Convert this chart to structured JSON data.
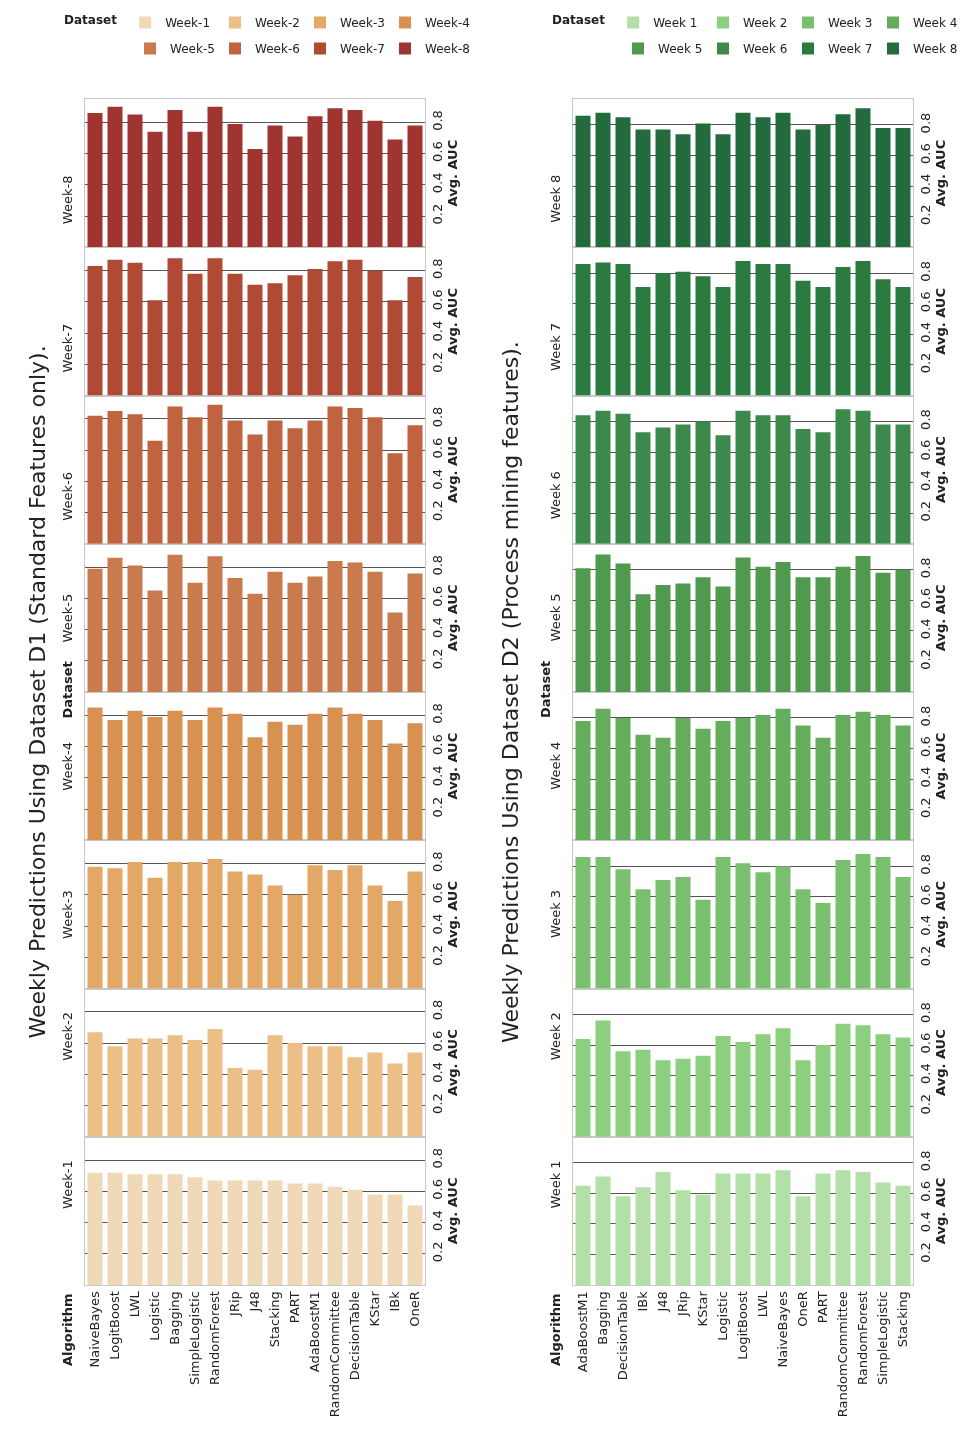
{
  "chart_data": [
    {
      "type": "bar",
      "title": "Weekly Predictions Using Dataset D1 (Standard Features only).",
      "ylabel": "Avg. AUC",
      "legend_title": "Dataset",
      "annotations": [
        "Algorithm",
        "Dataset"
      ],
      "legend": "top left",
      "grid": "y",
      "categories": [
        "NaiveBayes",
        "LogitBoost",
        "LWL",
        "Logistic",
        "Bagging",
        "SimpleLogistic",
        "RandomForest",
        "JRip",
        "J48",
        "Stacking",
        "PART",
        "AdaBoostM1",
        "RandomCommittee",
        "DecisionTable",
        "KStar",
        "IBk",
        "OneR"
      ],
      "ylim": [
        0,
        0.95
      ],
      "yticks": [
        0.2,
        0.4,
        0.6,
        0.8
      ],
      "series": [
        {
          "name": "Week-1",
          "color": "#efd9b7",
          "values": [
            0.72,
            0.72,
            0.71,
            0.71,
            0.71,
            0.69,
            0.67,
            0.67,
            0.67,
            0.67,
            0.65,
            0.65,
            0.63,
            0.61,
            0.58,
            0.58,
            0.51
          ]
        }
      ]
    },
    {
      "type": "bar",
      "ylabel": "Avg. AUC",
      "legend": "top left",
      "grid": "y",
      "tick_labels": "y",
      "categories": [
        "NaiveBayes",
        "LogitBoost",
        "LWL",
        "Logistic",
        "Bagging",
        "SimpleLogistic",
        "RandomForest",
        "JRip",
        "J48",
        "Stacking",
        "PART",
        "AdaBoostM1",
        "RandomCommittee",
        "DecisionTable",
        "KStar",
        "IBk",
        "OneR"
      ],
      "ylim": [
        0,
        0.95
      ],
      "yticks": [
        0.2,
        0.4,
        0.6,
        0.8
      ],
      "series": [
        {
          "name": "Week-2",
          "color": "#ebbf85",
          "values": [
            0.67,
            0.58,
            0.63,
            0.63,
            0.65,
            0.62,
            0.69,
            0.44,
            0.43,
            0.65,
            0.6,
            0.58,
            0.58,
            0.51,
            0.54,
            0.47,
            0.54
          ]
        }
      ]
    },
    {
      "type": "bar",
      "ylabel": "Avg. AUC",
      "legend": "top right",
      "grid": "y",
      "tick_labels": "y",
      "categories": [
        "NaiveBayes",
        "LogitBoost",
        "LWL",
        "Logistic",
        "Bagging",
        "SimpleLogistic",
        "RandomForest",
        "JRip",
        "J48",
        "Stacking",
        "PART",
        "AdaBoostM1",
        "RandomCommittee",
        "DecisionTable",
        "KStar",
        "IBk",
        "OneR"
      ],
      "ylim": [
        0,
        0.95
      ],
      "yticks": [
        0.2,
        0.4,
        0.6,
        0.8
      ],
      "series": [
        {
          "name": "Week-3",
          "color": "#e3a866",
          "values": [
            0.78,
            0.77,
            0.81,
            0.71,
            0.81,
            0.81,
            0.83,
            0.75,
            0.73,
            0.66,
            0.6,
            0.79,
            0.76,
            0.79,
            0.66,
            0.56,
            0.75
          ]
        }
      ]
    },
    {
      "type": "bar",
      "ylabel": "Avg. AUC",
      "legend": "top right",
      "grid": "y",
      "tick_labels": "y",
      "categories": [
        "NaiveBayes",
        "LogitBoost",
        "LWL",
        "Logistic",
        "Bagging",
        "SimpleLogistic",
        "RandomForest",
        "JRip",
        "J48",
        "Stacking",
        "PART",
        "AdaBoostM1",
        "RandomCommittee",
        "DecisionTable",
        "KStar",
        "IBk",
        "OneR"
      ],
      "ylim": [
        0,
        0.95
      ],
      "yticks": [
        0.2,
        0.4,
        0.6,
        0.8
      ],
      "series": [
        {
          "name": "Week-4",
          "color": "#d99152",
          "values": [
            0.85,
            0.77,
            0.83,
            0.79,
            0.83,
            0.77,
            0.85,
            0.81,
            0.66,
            0.76,
            0.74,
            0.81,
            0.85,
            0.81,
            0.77,
            0.62,
            0.75
          ]
        }
      ]
    },
    {
      "type": "bar",
      "ylabel": "Avg. AUC",
      "legend": "top left",
      "grid": "y",
      "tick_labels": "y",
      "categories": [
        "NaiveBayes",
        "LogitBoost",
        "LWL",
        "Logistic",
        "Bagging",
        "SimpleLogistic",
        "RandomForest",
        "JRip",
        "J48",
        "Stacking",
        "PART",
        "AdaBoostM1",
        "RandomCommittee",
        "DecisionTable",
        "KStar",
        "IBk",
        "OneR"
      ],
      "ylim": [
        0,
        0.95
      ],
      "yticks": [
        0.2,
        0.4,
        0.6,
        0.8
      ],
      "series": [
        {
          "name": "Week-5",
          "color": "#c97b4d",
          "values": [
            0.79,
            0.86,
            0.81,
            0.65,
            0.88,
            0.7,
            0.87,
            0.73,
            0.63,
            0.77,
            0.7,
            0.74,
            0.84,
            0.83,
            0.77,
            0.51,
            0.76
          ]
        }
      ]
    },
    {
      "type": "bar",
      "ylabel": "Avg. AUC",
      "legend": "top left",
      "grid": "y",
      "tick_labels": "y",
      "categories": [
        "NaiveBayes",
        "LogitBoost",
        "LWL",
        "Logistic",
        "Bagging",
        "SimpleLogistic",
        "RandomForest",
        "JRip",
        "J48",
        "Stacking",
        "PART",
        "AdaBoostM1",
        "RandomCommittee",
        "DecisionTable",
        "KStar",
        "IBk",
        "OneR"
      ],
      "ylim": [
        0,
        0.95
      ],
      "yticks": [
        0.2,
        0.4,
        0.6,
        0.8
      ],
      "series": [
        {
          "name": "Week-6",
          "color": "#c0643f",
          "values": [
            0.82,
            0.85,
            0.83,
            0.66,
            0.88,
            0.81,
            0.89,
            0.79,
            0.7,
            0.79,
            0.74,
            0.79,
            0.88,
            0.87,
            0.81,
            0.58,
            0.76
          ]
        }
      ]
    },
    {
      "type": "bar",
      "ylabel": "Avg. AUC",
      "legend": "top right",
      "grid": "y",
      "tick_labels": "y",
      "categories": [
        "NaiveBayes",
        "LogitBoost",
        "LWL",
        "Logistic",
        "Bagging",
        "SimpleLogistic",
        "RandomForest",
        "JRip",
        "J48",
        "Stacking",
        "PART",
        "AdaBoostM1",
        "RandomCommittee",
        "DecisionTable",
        "KStar",
        "IBk",
        "OneR"
      ],
      "ylim": [
        0,
        0.95
      ],
      "yticks": [
        0.2,
        0.4,
        0.6,
        0.8
      ],
      "series": [
        {
          "name": "Week-7",
          "color": "#b04a34",
          "values": [
            0.83,
            0.87,
            0.85,
            0.61,
            0.88,
            0.78,
            0.88,
            0.78,
            0.71,
            0.72,
            0.77,
            0.81,
            0.86,
            0.87,
            0.8,
            0.61,
            0.76
          ]
        }
      ]
    },
    {
      "type": "bar",
      "ylabel": "Avg. AUC",
      "legend": "top right",
      "grid": "y",
      "tick_labels": "y",
      "categories": [
        "NaiveBayes",
        "LogitBoost",
        "LWL",
        "Logistic",
        "Bagging",
        "SimpleLogistic",
        "RandomForest",
        "JRip",
        "J48",
        "Stacking",
        "PART",
        "AdaBoostM1",
        "RandomCommittee",
        "DecisionTable",
        "KStar",
        "IBk",
        "OneR"
      ],
      "ylim": [
        0,
        0.95
      ],
      "yticks": [
        0.2,
        0.4,
        0.6,
        0.8
      ],
      "series": [
        {
          "name": "Week-8",
          "color": "#a03430",
          "values": [
            0.86,
            0.9,
            0.85,
            0.74,
            0.88,
            0.74,
            0.9,
            0.79,
            0.63,
            0.78,
            0.71,
            0.84,
            0.89,
            0.88,
            0.81,
            0.69,
            0.78
          ]
        }
      ]
    },
    {
      "type": "bar",
      "title": "Weekly Predictions Using Dataset D2 (Process mining features).",
      "ylabel": "Avg. AUC",
      "legend_title": "Dataset",
      "annotations": [
        "Algorithm",
        "Dataset"
      ],
      "legend": "top left",
      "grid": "y",
      "categories": [
        "AdaBoostM1",
        "Bagging",
        "DecisionTable",
        "IBk",
        "J48",
        "JRip",
        "KStar",
        "Logistic",
        "LogitBoost",
        "LWL",
        "NaiveBayes",
        "OneR",
        "PART",
        "RandomCommittee",
        "RandomForest",
        "SimpleLogistic",
        "Stacking"
      ],
      "ylim": [
        0,
        0.97
      ],
      "yticks": [
        0.2,
        0.4,
        0.6,
        0.8
      ],
      "series": [
        {
          "name": "Week 1",
          "color": "#b3e0a6",
          "values": [
            0.65,
            0.71,
            0.58,
            0.64,
            0.74,
            0.62,
            0.59,
            0.73,
            0.73,
            0.73,
            0.75,
            0.58,
            0.73,
            0.75,
            0.74,
            0.67,
            0.65
          ]
        }
      ]
    },
    {
      "type": "bar",
      "ylabel": "Avg. AUC",
      "legend": "top left",
      "grid": "y",
      "tick_labels": "y",
      "categories": [
        "AdaBoostM1",
        "Bagging",
        "DecisionTable",
        "IBk",
        "J48",
        "JRip",
        "KStar",
        "Logistic",
        "LogitBoost",
        "LWL",
        "NaiveBayes",
        "OneR",
        "PART",
        "RandomCommittee",
        "RandomForest",
        "SimpleLogistic",
        "Stacking"
      ],
      "ylim": [
        0,
        0.97
      ],
      "yticks": [
        0.2,
        0.4,
        0.6,
        0.8
      ],
      "series": [
        {
          "name": "Week 2",
          "color": "#8ccf7e",
          "values": [
            0.64,
            0.76,
            0.56,
            0.57,
            0.5,
            0.51,
            0.53,
            0.66,
            0.62,
            0.67,
            0.71,
            0.5,
            0.6,
            0.74,
            0.73,
            0.67,
            0.65
          ]
        }
      ]
    },
    {
      "type": "bar",
      "ylabel": "Avg. AUC",
      "legend": "top right",
      "grid": "y",
      "tick_labels": "y",
      "categories": [
        "AdaBoostM1",
        "Bagging",
        "DecisionTable",
        "IBk",
        "J48",
        "JRip",
        "KStar",
        "Logistic",
        "LogitBoost",
        "LWL",
        "NaiveBayes",
        "OneR",
        "PART",
        "RandomCommittee",
        "RandomForest",
        "SimpleLogistic",
        "Stacking"
      ],
      "ylim": [
        0,
        0.97
      ],
      "yticks": [
        0.2,
        0.4,
        0.6,
        0.8
      ],
      "series": [
        {
          "name": "Week 3",
          "color": "#78c06d",
          "values": [
            0.86,
            0.86,
            0.78,
            0.65,
            0.71,
            0.73,
            0.58,
            0.86,
            0.82,
            0.76,
            0.8,
            0.65,
            0.56,
            0.84,
            0.88,
            0.86,
            0.73
          ]
        }
      ]
    },
    {
      "type": "bar",
      "ylabel": "Avg. AUC",
      "legend": "top right",
      "grid": "y",
      "tick_labels": "y",
      "categories": [
        "AdaBoostM1",
        "Bagging",
        "DecisionTable",
        "IBk",
        "J48",
        "JRip",
        "KStar",
        "Logistic",
        "LogitBoost",
        "LWL",
        "NaiveBayes",
        "OneR",
        "PART",
        "RandomCommittee",
        "RandomForest",
        "SimpleLogistic",
        "Stacking"
      ],
      "ylim": [
        0,
        0.97
      ],
      "yticks": [
        0.2,
        0.4,
        0.6,
        0.8
      ],
      "series": [
        {
          "name": "Week 4",
          "color": "#63ad5b",
          "values": [
            0.78,
            0.86,
            0.8,
            0.69,
            0.67,
            0.8,
            0.73,
            0.78,
            0.8,
            0.82,
            0.86,
            0.75,
            0.67,
            0.82,
            0.84,
            0.82,
            0.75
          ]
        }
      ]
    },
    {
      "type": "bar",
      "ylabel": "Avg. AUC",
      "legend": "top left",
      "grid": "y",
      "tick_labels": "y",
      "categories": [
        "AdaBoostM1",
        "Bagging",
        "DecisionTable",
        "IBk",
        "J48",
        "JRip",
        "KStar",
        "Logistic",
        "LogitBoost",
        "LWL",
        "NaiveBayes",
        "OneR",
        "PART",
        "RandomCommittee",
        "RandomForest",
        "SimpleLogistic",
        "Stacking"
      ],
      "ylim": [
        0,
        0.97
      ],
      "yticks": [
        0.2,
        0.4,
        0.6,
        0.8
      ],
      "series": [
        {
          "name": "Week 5",
          "color": "#4f9a4f",
          "values": [
            0.81,
            0.9,
            0.84,
            0.64,
            0.7,
            0.71,
            0.75,
            0.69,
            0.88,
            0.82,
            0.85,
            0.75,
            0.75,
            0.82,
            0.89,
            0.78,
            0.8
          ]
        }
      ]
    },
    {
      "type": "bar",
      "ylabel": "Avg. AUC",
      "legend": "top left",
      "grid": "y",
      "tick_labels": "y",
      "categories": [
        "AdaBoostM1",
        "Bagging",
        "DecisionTable",
        "IBk",
        "J48",
        "JRip",
        "KStar",
        "Logistic",
        "LogitBoost",
        "LWL",
        "NaiveBayes",
        "OneR",
        "PART",
        "RandomCommittee",
        "RandomForest",
        "SimpleLogistic",
        "Stacking"
      ],
      "ylim": [
        0,
        0.97
      ],
      "yticks": [
        0.2,
        0.4,
        0.6,
        0.8
      ],
      "series": [
        {
          "name": "Week 6",
          "color": "#3c8a4b",
          "values": [
            0.84,
            0.87,
            0.85,
            0.73,
            0.76,
            0.78,
            0.8,
            0.71,
            0.87,
            0.84,
            0.84,
            0.75,
            0.73,
            0.88,
            0.87,
            0.78,
            0.78
          ]
        }
      ]
    },
    {
      "type": "bar",
      "ylabel": "Avg. AUC",
      "legend": "top right",
      "grid": "y",
      "tick_labels": "y",
      "categories": [
        "AdaBoostM1",
        "Bagging",
        "DecisionTable",
        "IBk",
        "J48",
        "JRip",
        "KStar",
        "Logistic",
        "LogitBoost",
        "LWL",
        "NaiveBayes",
        "OneR",
        "PART",
        "RandomCommittee",
        "RandomForest",
        "SimpleLogistic",
        "Stacking"
      ],
      "ylim": [
        0,
        0.97
      ],
      "yticks": [
        0.2,
        0.4,
        0.6,
        0.8
      ],
      "series": [
        {
          "name": "Week 7",
          "color": "#2b7a3f",
          "values": [
            0.86,
            0.87,
            0.86,
            0.71,
            0.8,
            0.81,
            0.78,
            0.71,
            0.88,
            0.86,
            0.86,
            0.75,
            0.71,
            0.84,
            0.88,
            0.76,
            0.71
          ]
        }
      ]
    },
    {
      "type": "bar",
      "ylabel": "Avg. AUC",
      "legend": "top right",
      "grid": "y",
      "tick_labels": "y",
      "categories": [
        "AdaBoostM1",
        "Bagging",
        "DecisionTable",
        "IBk",
        "J48",
        "JRip",
        "KStar",
        "Logistic",
        "LogitBoost",
        "LWL",
        "NaiveBayes",
        "OneR",
        "PART",
        "RandomCommittee",
        "RandomForest",
        "SimpleLogistic",
        "Stacking"
      ],
      "ylim": [
        0,
        0.97
      ],
      "yticks": [
        0.2,
        0.4,
        0.6,
        0.8
      ],
      "series": [
        {
          "name": "Week 8",
          "color": "#236b3d",
          "values": [
            0.86,
            0.88,
            0.85,
            0.77,
            0.77,
            0.74,
            0.81,
            0.74,
            0.88,
            0.85,
            0.88,
            0.77,
            0.8,
            0.87,
            0.91,
            0.78,
            0.78
          ]
        }
      ]
    }
  ]
}
